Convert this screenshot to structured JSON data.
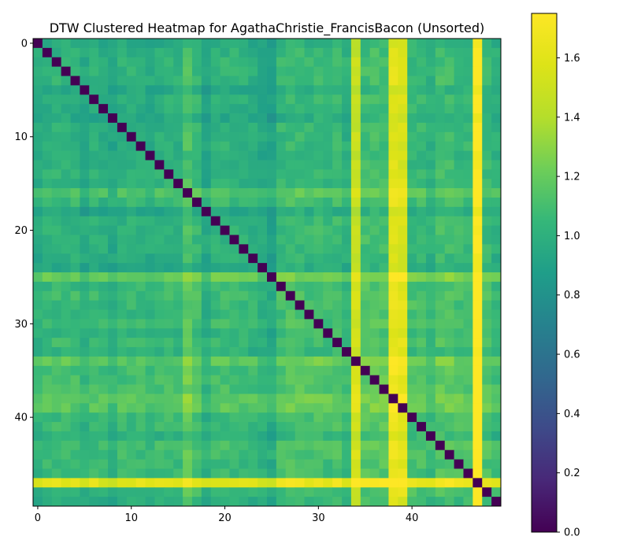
{
  "chart_data": {
    "type": "heatmap",
    "title": "DTW Clustered Heatmap for AgathaChristie_FrancisBacon (Unsorted)",
    "colormap": "viridis",
    "n": 50,
    "x_ticks": [
      0,
      10,
      20,
      30,
      40
    ],
    "y_ticks": [
      0,
      10,
      20,
      30,
      40
    ],
    "colorbar": {
      "min": 0.0,
      "max": 1.75,
      "ticks": [
        0.0,
        0.2,
        0.4,
        0.6,
        0.8,
        1.0,
        1.2,
        1.4,
        1.6
      ],
      "tick_labels": [
        "0.0",
        "0.2",
        "0.4",
        "0.6",
        "0.8",
        "1.0",
        "1.2",
        "1.4",
        "1.6"
      ]
    },
    "diagonal_value": 0.0,
    "row_offsets": [
      0.92,
      1.0,
      1.02,
      1.03,
      1.02,
      0.9,
      1.0,
      0.97,
      0.88,
      1.0,
      1.0,
      1.0,
      0.95,
      1.0,
      1.03,
      1.0,
      1.22,
      1.08,
      0.88,
      1.02,
      1.03,
      1.02,
      1.0,
      0.97,
      0.9,
      0.82,
      1.08,
      1.12,
      1.1,
      1.08,
      1.12,
      1.05,
      1.1,
      1.0,
      1.3,
      1.15,
      1.18,
      1.18,
      1.32,
      1.28,
      1.1,
      1.1,
      1.0,
      1.15,
      1.15,
      1.1,
      1.1,
      1.45,
      1.1,
      1.0
    ],
    "high_columns": {
      "34": 0.3,
      "38": 0.42,
      "39": 0.4,
      "47": 0.5
    },
    "bright_rows": {
      "25": 0.3,
      "47": 0.35
    }
  }
}
